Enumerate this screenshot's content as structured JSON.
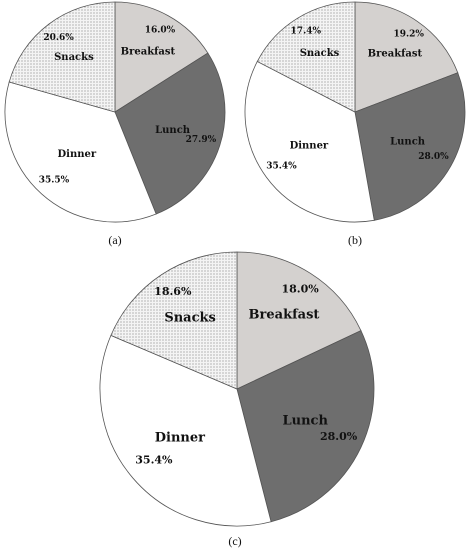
{
  "chart_data": [
    {
      "type": "pie",
      "caption": "(a)",
      "slices": [
        {
          "label": "Breakfast",
          "value": 16.0,
          "value_label": "16.0%",
          "color": "#d4d1cf",
          "pattern": "none"
        },
        {
          "label": "Lunch",
          "value": 27.9,
          "value_label": "27.9%",
          "color": "#6e6e6e",
          "pattern": "none"
        },
        {
          "label": "Dinner",
          "value": 35.5,
          "value_label": "35.5%",
          "color": "#ffffff",
          "pattern": "none"
        },
        {
          "label": "Snacks",
          "value": 20.6,
          "value_label": "20.6%",
          "color": "#eeeeee",
          "pattern": "dots"
        }
      ]
    },
    {
      "type": "pie",
      "caption": "(b)",
      "slices": [
        {
          "label": "Breakfast",
          "value": 19.2,
          "value_label": "19.2%",
          "color": "#d4d1cf",
          "pattern": "none"
        },
        {
          "label": "Lunch",
          "value": 28.0,
          "value_label": "28.0%",
          "color": "#6e6e6e",
          "pattern": "none"
        },
        {
          "label": "Dinner",
          "value": 35.4,
          "value_label": "35.4%",
          "color": "#ffffff",
          "pattern": "none"
        },
        {
          "label": "Snacks",
          "value": 17.4,
          "value_label": "17.4%",
          "color": "#eeeeee",
          "pattern": "dots"
        }
      ]
    },
    {
      "type": "pie",
      "caption": "(c)",
      "slices": [
        {
          "label": "Breakfast",
          "value": 18.0,
          "value_label": "18.0%",
          "color": "#d4d1cf",
          "pattern": "none"
        },
        {
          "label": "Lunch",
          "value": 28.0,
          "value_label": "28.0%",
          "color": "#6e6e6e",
          "pattern": "none"
        },
        {
          "label": "Dinner",
          "value": 35.4,
          "value_label": "35.4%",
          "color": "#ffffff",
          "pattern": "none"
        },
        {
          "label": "Snacks",
          "value": 18.6,
          "value_label": "18.6%",
          "color": "#eeeeee",
          "pattern": "dots"
        }
      ]
    }
  ]
}
